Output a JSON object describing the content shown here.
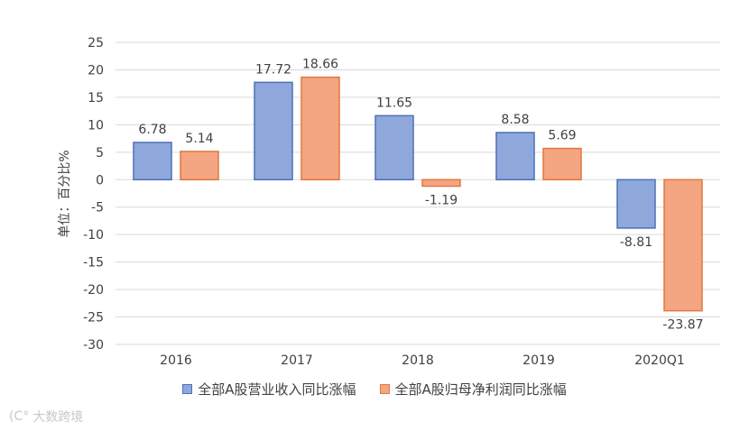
{
  "chart_data": {
    "type": "bar",
    "categories": [
      "2016",
      "2017",
      "2018",
      "2019",
      "2020Q1"
    ],
    "series": [
      {
        "name": "全部A股营业收入同比涨幅",
        "values": [
          6.78,
          17.72,
          11.65,
          8.58,
          -8.81
        ],
        "color": "#8fa8dc",
        "stroke": "#4f6fb7"
      },
      {
        "name": "全部A股归母净利润同比涨幅",
        "values": [
          5.14,
          18.66,
          -1.19,
          5.69,
          -23.87
        ],
        "color": "#f4a582",
        "stroke": "#e0783e"
      }
    ],
    "data_labels": [
      [
        "6.78",
        "17.72",
        "11.65",
        "8.58",
        "-8.81"
      ],
      [
        "5.14",
        "18.66",
        "-1.19",
        "5.69",
        "-23.87"
      ]
    ],
    "ylabel": "单位：百分比%",
    "ylim": [
      -30,
      25
    ],
    "yticks": [
      25,
      20,
      15,
      10,
      5,
      0,
      -5,
      -10,
      -15,
      -20,
      -25,
      -30
    ],
    "grid": true,
    "legend_position": "bottom"
  },
  "watermark": {
    "logo_text": "(C°",
    "text": "大数跨境"
  }
}
